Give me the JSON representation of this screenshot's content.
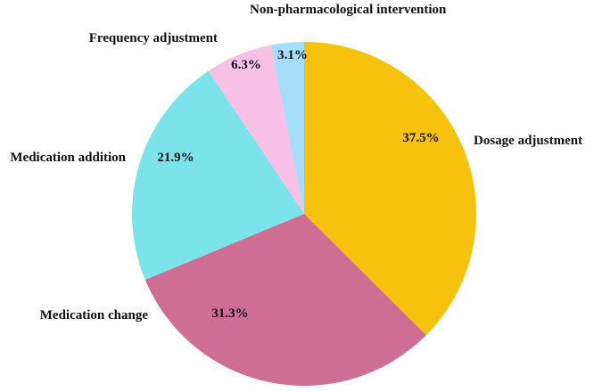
{
  "chart_data": {
    "type": "pie",
    "title": "",
    "start_angle_deg": 0,
    "direction": "clockwise",
    "slices": [
      {
        "label": "Dosage adjustment",
        "value": 37.5,
        "value_label": "37.5%",
        "color": "#F7C20E"
      },
      {
        "label": "Medication change",
        "value": 31.3,
        "value_label": "31.3%",
        "color": "#CE6E92"
      },
      {
        "label": "Medication addition",
        "value": 21.9,
        "value_label": "21.9%",
        "color": "#7BE4EB"
      },
      {
        "label": "Frequency adjustment",
        "value": 6.3,
        "value_label": "6.3%",
        "color": "#F9C0E6"
      },
      {
        "label": "Non-pharmacological intervention",
        "value": 3.1,
        "value_label": "3.1%",
        "color": "#A4DEFB"
      }
    ]
  }
}
